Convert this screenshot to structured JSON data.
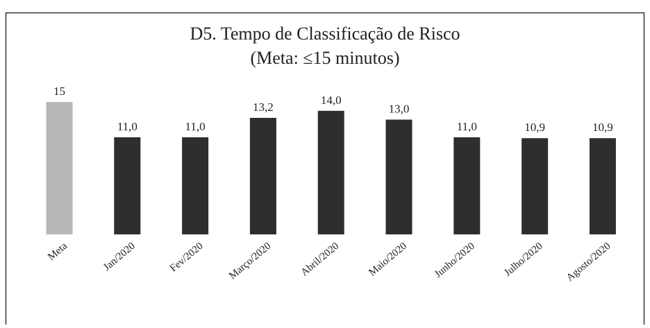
{
  "chart_data": {
    "type": "bar",
    "title": "D5. Tempo de Classificação de Risco",
    "subtitle": "(Meta: ≤15 minutos)",
    "categories": [
      "Meta",
      "Jan/2020",
      "Fev/2020",
      "Março/2020",
      "Abril/2020",
      "Maio/2020",
      "Junho/2020",
      "Julho/2020",
      "Agosto/2020"
    ],
    "values": [
      15,
      11.0,
      11.0,
      13.2,
      14.0,
      13.0,
      11.0,
      10.9,
      10.9
    ],
    "value_labels": [
      "15",
      "11,0",
      "11,0",
      "13,2",
      "14,0",
      "13,0",
      "11,0",
      "10,9",
      "10,9"
    ],
    "colors": [
      "#b8b8b8",
      "#2e2e2e",
      "#2e2e2e",
      "#2e2e2e",
      "#2e2e2e",
      "#2e2e2e",
      "#2e2e2e",
      "#2e2e2e",
      "#2e2e2e"
    ]
  }
}
